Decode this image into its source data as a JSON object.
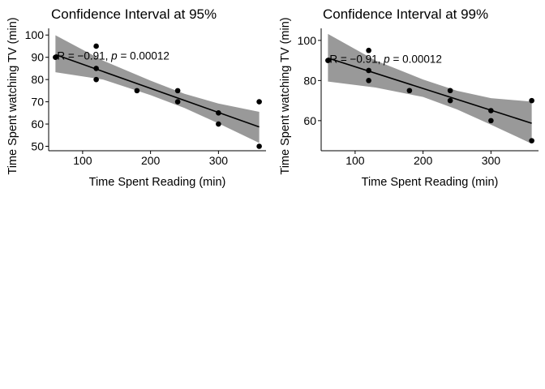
{
  "chart_data": [
    {
      "type": "scatter",
      "title": "Confidence Interval at 95%",
      "xlabel": "Time Spent Reading (min)",
      "ylabel": "Time Spent watching TV (min)",
      "xlim": [
        50,
        370
      ],
      "ylim": [
        48,
        103
      ],
      "xticks": [
        100,
        200,
        300
      ],
      "yticks": [
        50,
        60,
        70,
        80,
        90,
        100
      ],
      "annotation": {
        "R": "R = −0.91, ",
        "p_symbol": "p",
        "p_value": " = 0.00012",
        "x": 60,
        "y": 90
      },
      "points": [
        {
          "x": 60,
          "y": 90
        },
        {
          "x": 120,
          "y": 95
        },
        {
          "x": 120,
          "y": 85
        },
        {
          "x": 120,
          "y": 80
        },
        {
          "x": 180,
          "y": 75
        },
        {
          "x": 240,
          "y": 75
        },
        {
          "x": 240,
          "y": 70
        },
        {
          "x": 300,
          "y": 65
        },
        {
          "x": 300,
          "y": 60
        },
        {
          "x": 360,
          "y": 70
        },
        {
          "x": 360,
          "y": 50
        }
      ],
      "fit_line": [
        {
          "x": 60,
          "y": 91.2
        },
        {
          "x": 360,
          "y": 58.7
        }
      ],
      "confidence_band": {
        "upper": [
          {
            "x": 60,
            "y": 99.9
          },
          {
            "x": 130,
            "y": 88.5
          },
          {
            "x": 200,
            "y": 79.5
          },
          {
            "x": 250,
            "y": 73.6
          },
          {
            "x": 300,
            "y": 69.2
          },
          {
            "x": 360,
            "y": 65.5
          }
        ],
        "lower": [
          {
            "x": 60,
            "y": 83.3
          },
          {
            "x": 130,
            "y": 80.0
          },
          {
            "x": 200,
            "y": 73.0
          },
          {
            "x": 250,
            "y": 67.2
          },
          {
            "x": 300,
            "y": 60.3
          },
          {
            "x": 360,
            "y": 51.5
          }
        ]
      },
      "colors": {
        "band": "#999999",
        "line": "#000000",
        "points": "#000000"
      }
    },
    {
      "type": "scatter",
      "title": "Confidence Interval at 99%",
      "xlabel": "Time Spent Reading (min)",
      "ylabel": "Time Spent watching TV (min)",
      "xlim": [
        50,
        370
      ],
      "ylim": [
        45,
        106
      ],
      "xticks": [
        100,
        200,
        300
      ],
      "yticks": [
        60,
        80,
        100
      ],
      "annotation": {
        "R": "R = −0.91, ",
        "p_symbol": "p",
        "p_value": " = 0.00012",
        "x": 60,
        "y": 90
      },
      "points": [
        {
          "x": 60,
          "y": 90
        },
        {
          "x": 120,
          "y": 95
        },
        {
          "x": 120,
          "y": 85
        },
        {
          "x": 120,
          "y": 80
        },
        {
          "x": 180,
          "y": 75
        },
        {
          "x": 240,
          "y": 75
        },
        {
          "x": 240,
          "y": 70
        },
        {
          "x": 300,
          "y": 65
        },
        {
          "x": 300,
          "y": 60
        },
        {
          "x": 360,
          "y": 70
        },
        {
          "x": 360,
          "y": 50
        }
      ],
      "fit_line": [
        {
          "x": 60,
          "y": 91.2
        },
        {
          "x": 360,
          "y": 58.7
        }
      ],
      "confidence_band": {
        "upper": [
          {
            "x": 60,
            "y": 103.2
          },
          {
            "x": 130,
            "y": 90.0
          },
          {
            "x": 200,
            "y": 80.5
          },
          {
            "x": 250,
            "y": 74.9
          },
          {
            "x": 300,
            "y": 71.2
          },
          {
            "x": 360,
            "y": 69.5
          }
        ],
        "lower": [
          {
            "x": 60,
            "y": 79.5
          },
          {
            "x": 130,
            "y": 76.5
          },
          {
            "x": 200,
            "y": 71.8
          },
          {
            "x": 250,
            "y": 65.6
          },
          {
            "x": 300,
            "y": 58.0
          },
          {
            "x": 360,
            "y": 48.5
          }
        ]
      },
      "colors": {
        "band": "#999999",
        "line": "#000000",
        "points": "#000000"
      }
    }
  ]
}
